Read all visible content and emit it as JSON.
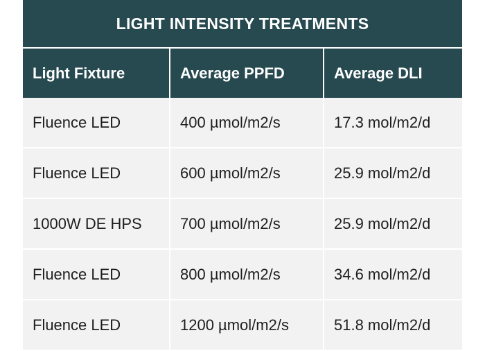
{
  "table": {
    "title": "LIGHT INTENSITY TREATMENTS",
    "headers": [
      "Light Fixture",
      "Average PPFD",
      "Average DLI"
    ],
    "rows": [
      [
        "Fluence LED",
        "400 µmol/m2/s",
        "17.3 mol/m2/d"
      ],
      [
        "Fluence LED",
        "600 µmol/m2/s",
        "25.9 mol/m2/d"
      ],
      [
        "1000W DE HPS",
        "700 µmol/m2/s",
        "25.9 mol/m2/d"
      ],
      [
        "Fluence LED",
        "800 µmol/m2/s",
        "34.6 mol/m2/d"
      ],
      [
        "Fluence LED",
        "1200 µmol/m2/s",
        "51.8 mol/m2/d"
      ]
    ]
  },
  "colors": {
    "header_bg": "#274a50",
    "header_text": "#ffffff",
    "row_bg": "#f2f2f2",
    "row_text": "#1e1e1e"
  }
}
